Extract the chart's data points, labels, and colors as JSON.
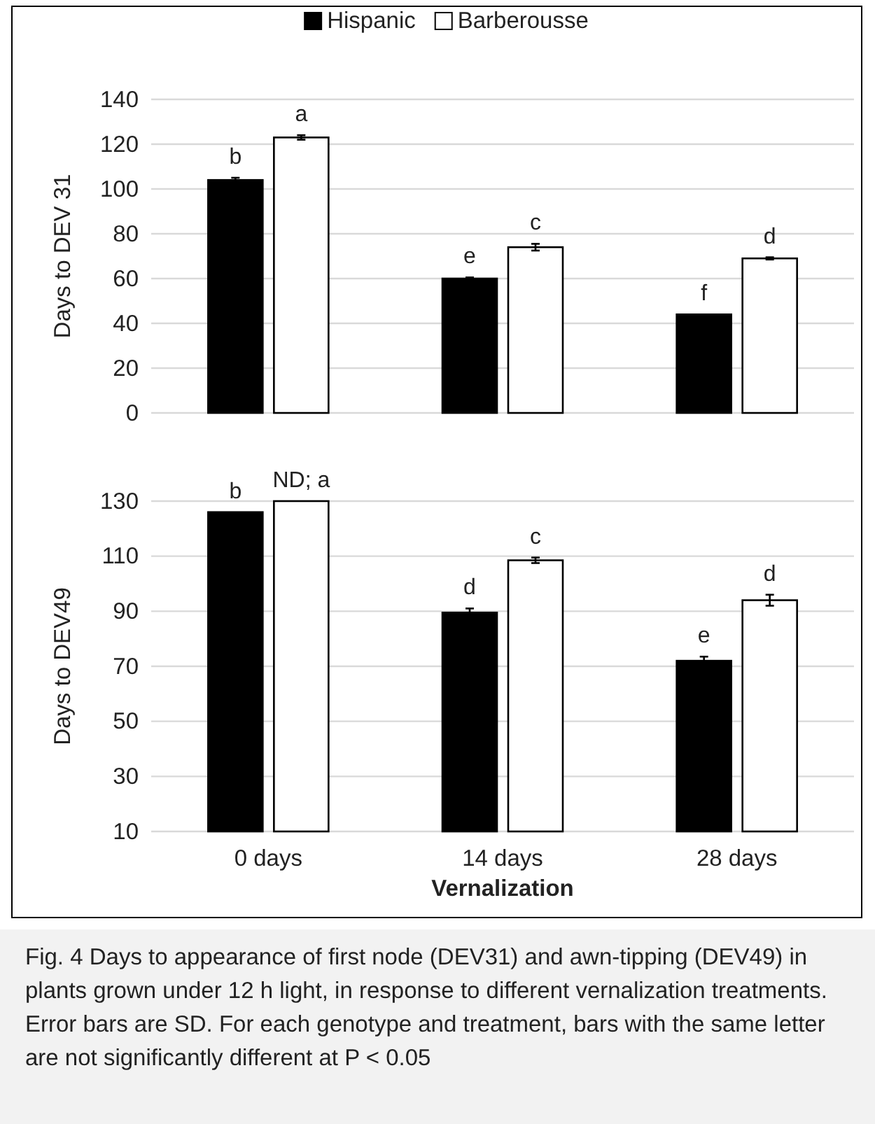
{
  "chart_data": [
    {
      "type": "bar",
      "ylabel": "Days to DEV 31",
      "categories": [
        null,
        null,
        null
      ],
      "tick_labels": "y",
      "ylim": [
        0,
        140
      ],
      "yticks": [
        0,
        20,
        40,
        60,
        80,
        100,
        120,
        140
      ],
      "grid": "y",
      "legend": "top",
      "series": [
        {
          "name": "Hispanic",
          "color": "#000000",
          "values": [
            104,
            60,
            44
          ],
          "errors": [
            1,
            0.5,
            null
          ],
          "value_labels": [
            "b",
            "e",
            "f"
          ]
        },
        {
          "name": "Barberousse",
          "color": "#ffffff",
          "values": [
            123,
            74,
            69
          ],
          "errors": [
            1,
            1.5,
            0.5
          ],
          "value_labels": [
            "a",
            "c",
            "d"
          ]
        }
      ]
    },
    {
      "type": "bar",
      "ylabel": "Days to DEV49",
      "xlabel": "Vernalization",
      "categories": [
        "0 days",
        "14 days",
        "28 days"
      ],
      "ylim": [
        10,
        130
      ],
      "yticks": [
        10,
        30,
        50,
        70,
        90,
        110,
        130
      ],
      "grid": "y",
      "series": [
        {
          "color": "#000000",
          "values": [
            126,
            89.5,
            72
          ],
          "errors": [
            null,
            1.5,
            1.5
          ],
          "value_labels": [
            "b",
            "d",
            "e"
          ]
        },
        {
          "color": "#ffffff",
          "values": [
            130,
            108.5,
            94
          ],
          "errors": [
            null,
            1,
            2
          ],
          "value_labels": [
            "ND; a",
            "c",
            "d"
          ]
        }
      ],
      "annotations": [
        "Fig. 4 Days to appearance of first node (DEV31) and awn-tipping (DEV49) in plants grown under 12 h light, in response to different vernalization treatments. Error bars are SD. For each genotype and treatment, bars with the same letter are not significantly different at P < 0.05"
      ]
    }
  ]
}
